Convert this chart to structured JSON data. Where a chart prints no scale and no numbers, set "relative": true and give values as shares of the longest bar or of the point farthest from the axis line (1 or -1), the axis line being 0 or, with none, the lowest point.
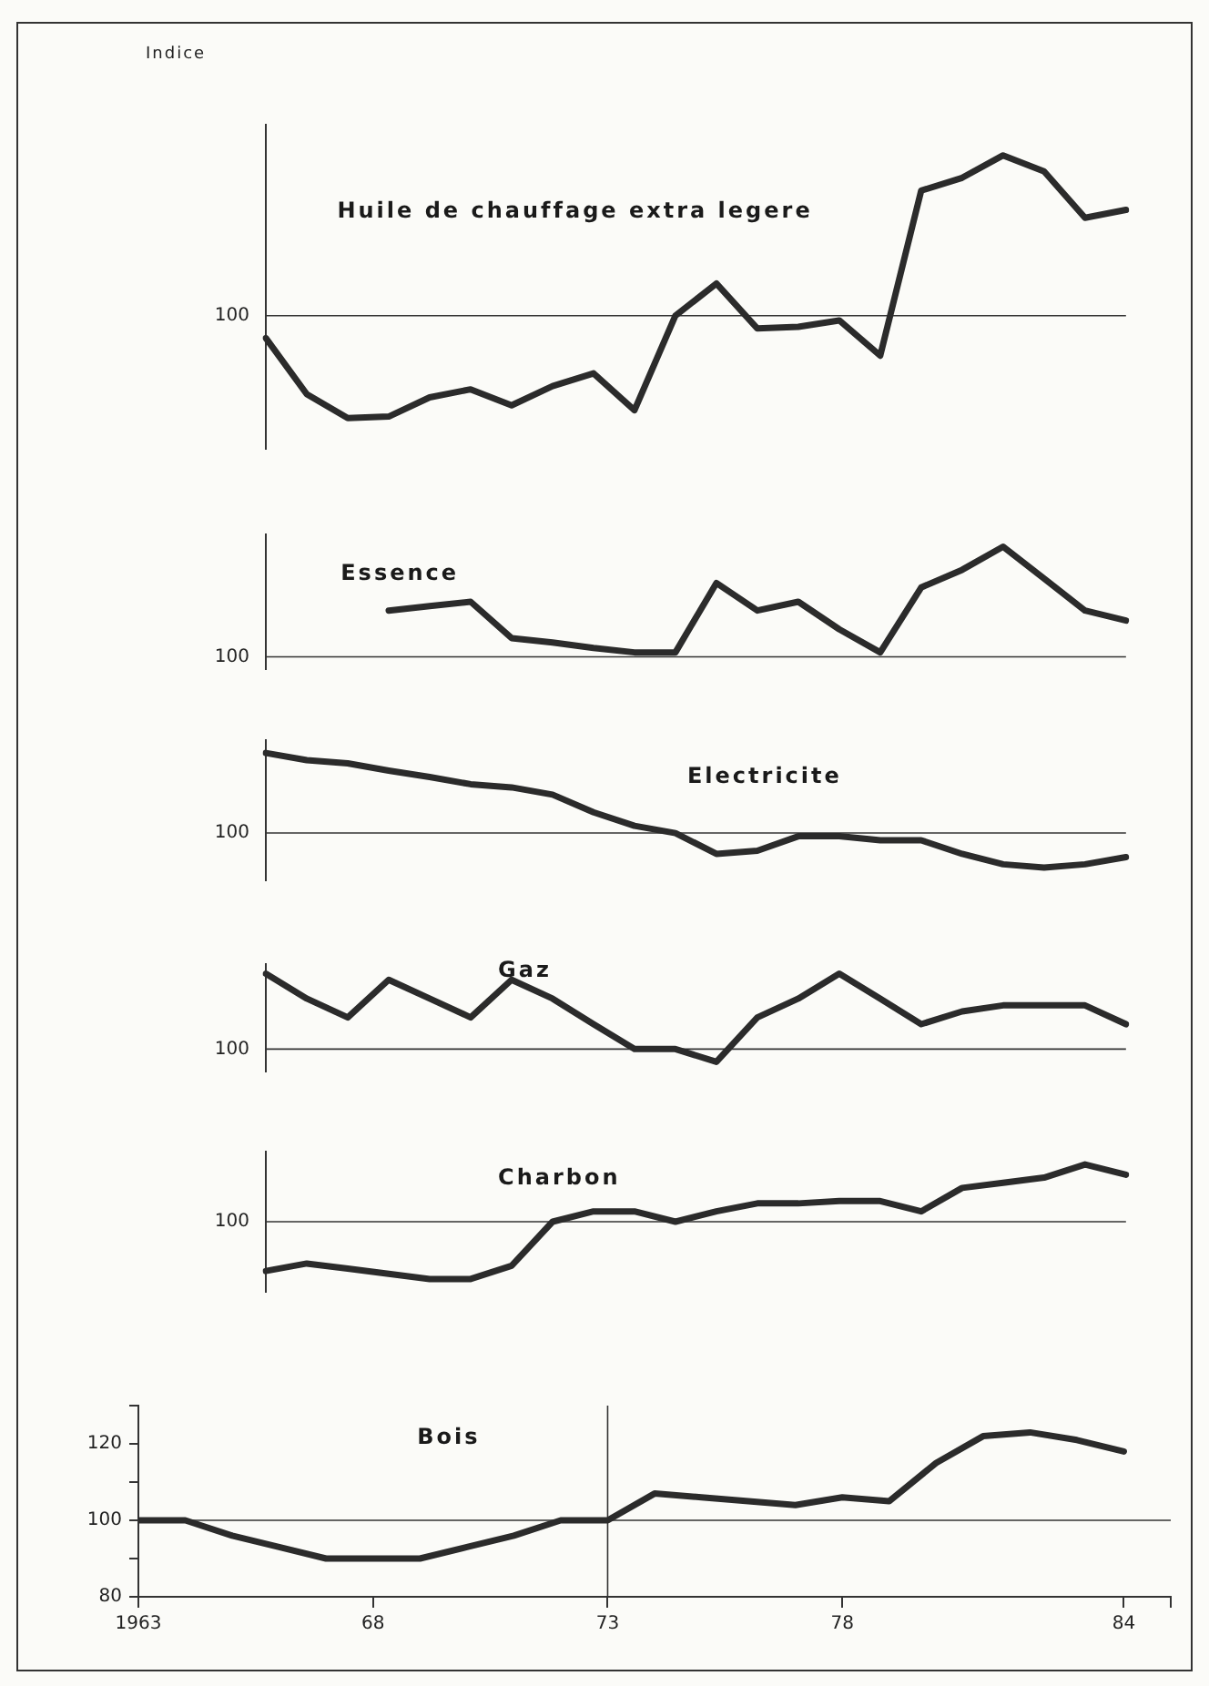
{
  "chart_data": [
    {
      "type": "line",
      "title": "Huile de chauffage extra legere",
      "ylabel": "Indice",
      "categories": [
        null,
        null,
        null,
        null,
        null,
        null,
        null,
        null,
        null,
        null,
        null,
        null,
        null,
        null,
        null,
        null,
        null,
        null,
        null,
        null,
        null,
        null
      ],
      "series": [
        {
          "color": "#2b2b2b",
          "values": [
            -0.14,
            -0.49,
            -0.64,
            -0.63,
            -0.51,
            -0.46,
            -0.56,
            -0.44,
            -0.36,
            -0.59,
            0,
            0.2,
            -0.08,
            -0.07,
            -0.03,
            -0.25,
            0.78,
            0.86,
            1,
            0.9,
            0.61,
            0.66
          ]
        }
      ],
      "relative": true,
      "annotations": [
        "100"
      ],
      "ref_lines": [
        {
          "axis": "y",
          "value": 0
        }
      ],
      "marker": "none",
      "grid": false
    },
    {
      "type": "line",
      "title": "Essence",
      "categories": [
        null,
        null,
        null,
        null,
        null,
        null,
        null,
        null,
        null,
        null,
        null,
        null,
        null,
        null,
        null,
        null,
        null,
        null,
        null,
        null,
        null,
        null
      ],
      "series": [
        {
          "color": "#2b2b2b",
          "values": [
            null,
            null,
            null,
            0.42,
            0.46,
            0.5,
            0.17,
            0.13,
            0.08,
            0.04,
            0.04,
            0.67,
            0.42,
            0.5,
            0.25,
            0.04,
            0.63,
            0.79,
            1,
            0.71,
            0.42,
            0.33
          ]
        }
      ],
      "relative": true,
      "annotations": [
        "100"
      ],
      "ref_lines": [
        {
          "axis": "y",
          "value": 0
        }
      ],
      "marker": "none",
      "grid": false
    },
    {
      "type": "line",
      "title": "Electricite",
      "categories": [
        null,
        null,
        null,
        null,
        null,
        null,
        null,
        null,
        null,
        null,
        null,
        null,
        null,
        null,
        null,
        null,
        null,
        null,
        null,
        null,
        null,
        null
      ],
      "series": [
        {
          "color": "#2b2b2b",
          "values": [
            1,
            0.91,
            0.87,
            0.78,
            0.7,
            0.61,
            0.57,
            0.48,
            0.26,
            0.09,
            0,
            -0.26,
            -0.22,
            -0.04,
            -0.04,
            -0.09,
            -0.09,
            -0.26,
            -0.39,
            -0.43,
            -0.39,
            -0.3
          ]
        }
      ],
      "relative": true,
      "annotations": [
        "100"
      ],
      "ref_lines": [
        {
          "axis": "y",
          "value": 0
        }
      ],
      "marker": "none",
      "grid": false
    },
    {
      "type": "line",
      "title": "Gaz",
      "categories": [
        null,
        null,
        null,
        null,
        null,
        null,
        null,
        null,
        null,
        null,
        null,
        null,
        null,
        null,
        null,
        null,
        null,
        null,
        null,
        null,
        null,
        null
      ],
      "series": [
        {
          "color": "#2b2b2b",
          "values": [
            1,
            0.67,
            0.42,
            0.92,
            0.67,
            0.42,
            0.92,
            0.67,
            0.33,
            0,
            0,
            -0.17,
            0.42,
            0.67,
            1,
            0.67,
            0.33,
            0.5,
            0.58,
            0.58,
            0.58,
            0.33
          ]
        }
      ],
      "relative": true,
      "annotations": [
        "100"
      ],
      "ref_lines": [
        {
          "axis": "y",
          "value": 0
        }
      ],
      "marker": "none",
      "grid": false
    },
    {
      "type": "line",
      "title": "Charbon",
      "categories": [
        null,
        null,
        null,
        null,
        null,
        null,
        null,
        null,
        null,
        null,
        null,
        null,
        null,
        null,
        null,
        null,
        null,
        null,
        null,
        null,
        null,
        null
      ],
      "series": [
        {
          "color": "#2b2b2b",
          "values": [
            -0.86,
            -0.73,
            -0.82,
            -0.91,
            -1,
            -1,
            -0.77,
            0,
            0.18,
            0.18,
            0,
            0.18,
            0.32,
            0.32,
            0.36,
            0.36,
            0.18,
            0.59,
            0.68,
            0.77,
            1,
            0.82
          ]
        }
      ],
      "relative": true,
      "annotations": [
        "100"
      ],
      "ref_lines": [
        {
          "axis": "y",
          "value": 0
        }
      ],
      "marker": "none",
      "grid": false
    },
    {
      "type": "line",
      "title": "Bois",
      "x": [
        1963,
        1964,
        1965,
        1966,
        1967,
        1968,
        1969,
        1970,
        1971,
        1972,
        1973,
        1974,
        1975,
        1976,
        1977,
        1978,
        1979,
        1980,
        1981,
        1982,
        1983,
        1984
      ],
      "series": [
        {
          "color": "#2b2b2b",
          "values": [
            100,
            100,
            96,
            93,
            90,
            90,
            90,
            93,
            96,
            100,
            100,
            107,
            106,
            105,
            104,
            106,
            105,
            115,
            122,
            123,
            121,
            118
          ]
        }
      ],
      "xlim": [
        1963,
        1985
      ],
      "xticks": [
        1963,
        {
          "value": 1968,
          "label": "68"
        },
        {
          "value": 1973,
          "label": "73"
        },
        {
          "value": 1978,
          "label": "78"
        },
        {
          "value": 1984,
          "label": "84"
        },
        {
          "value": 1985,
          "label": null
        }
      ],
      "ylim": [
        80,
        130
      ],
      "yticks": [
        80,
        {
          "value": 90,
          "label": null
        },
        100,
        {
          "value": 110,
          "label": null
        },
        120,
        {
          "value": 130,
          "label": null
        }
      ],
      "ref_lines": [
        {
          "axis": "y",
          "value": 100
        },
        {
          "axis": "x",
          "value": 1973
        }
      ],
      "marker": "none",
      "grid": false
    }
  ]
}
